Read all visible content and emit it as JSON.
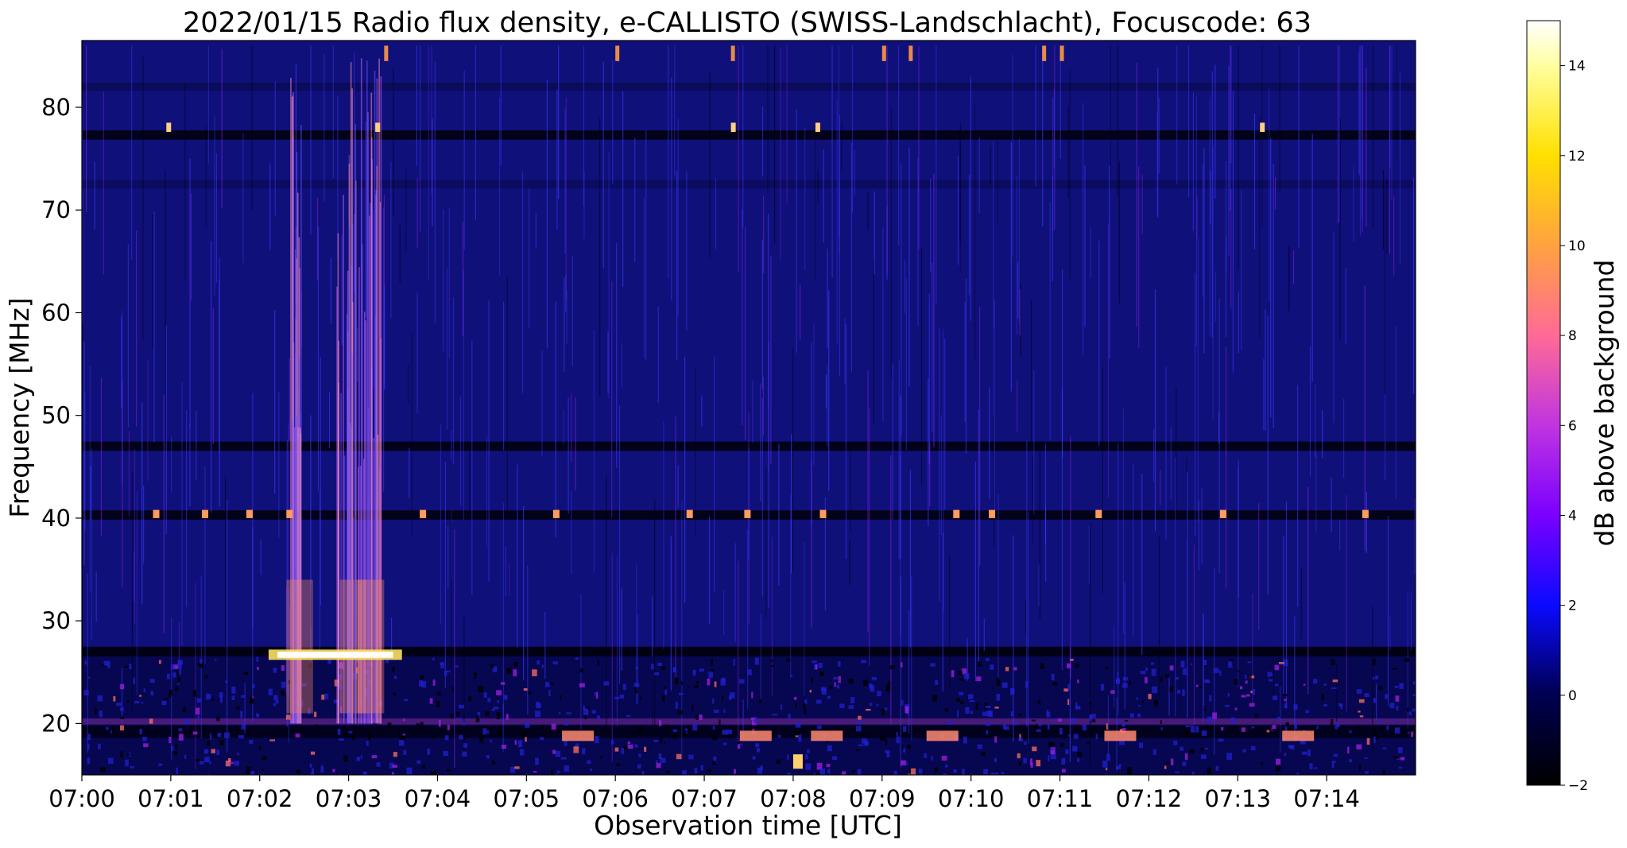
{
  "chart_data": {
    "type": "heatmap",
    "title": "2022/01/15  Radio flux density, e-CALLISTO (SWISS-Landschlacht), Focuscode: 63",
    "xlabel": "Observation time [UTC]",
    "ylabel": "Frequency [MHz]",
    "xlim": [
      "07:00",
      "07:15"
    ],
    "ylim": [
      15,
      86.5
    ],
    "x_ticks": [
      "07:00",
      "07:01",
      "07:02",
      "07:03",
      "07:04",
      "07:05",
      "07:06",
      "07:07",
      "07:08",
      "07:09",
      "07:10",
      "07:11",
      "07:12",
      "07:13",
      "07:14"
    ],
    "y_ticks": [
      20,
      30,
      40,
      50,
      60,
      70,
      80
    ],
    "colorbar": {
      "label": "dB above background",
      "range": [
        -2,
        15
      ],
      "ticks": [
        -2,
        0,
        2,
        4,
        6,
        8,
        10,
        12,
        14
      ],
      "colormap": "gnuplot2"
    },
    "colors": {
      "background": "#10107a",
      "dark_band": "#000008",
      "burst": "#ffffff",
      "hot": "#ff9a40"
    },
    "features": {
      "type_iii_bursts_minutes": [
        2.4,
        3.0,
        3.2
      ],
      "bright_band_mhz": 26.7,
      "bright_band_span_minutes": [
        2.1,
        3.6
      ],
      "dark_bands_mhz": [
        77.3,
        47.0,
        40.3,
        27.0
      ]
    }
  }
}
